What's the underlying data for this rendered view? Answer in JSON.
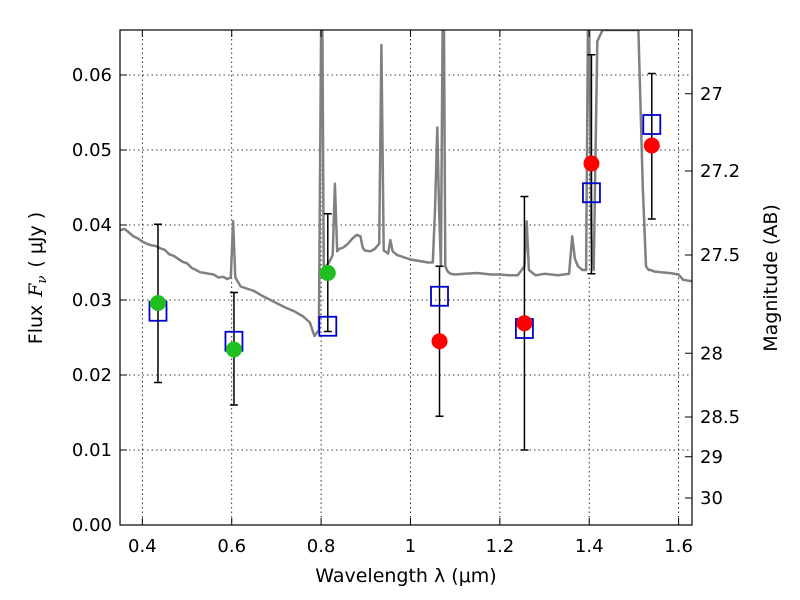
{
  "chart_data": {
    "type": "scatter",
    "xlabel": "Wavelength  λ (μm)",
    "ylabel": "Flux  F_ν  ( μJy )",
    "ylabel_parts": {
      "prefix": "Flux",
      "symbol": "F",
      "subscript": "ν",
      "unit": "( μJy )"
    },
    "ylabel_right": "Magnitude (AB)",
    "xlim": [
      0.35,
      1.63
    ],
    "ylim": [
      0.0,
      0.066
    ],
    "grid": true,
    "x_ticks": [
      0.4,
      0.6,
      0.8,
      1.0,
      1.2,
      1.4,
      1.6
    ],
    "x_tick_labels": [
      "0.4",
      "0.6",
      "0.8",
      "1",
      "1.2",
      "1.4",
      "1.6"
    ],
    "y_ticks": [
      0.0,
      0.01,
      0.02,
      0.03,
      0.04,
      0.05,
      0.06
    ],
    "y_tick_labels": [
      "0.00",
      "0.01",
      "0.02",
      "0.03",
      "0.04",
      "0.05",
      "0.06"
    ],
    "mag_ticks": [
      {
        "label": "27",
        "flux": 0.0575
      },
      {
        "label": "27.2",
        "flux": 0.0472
      },
      {
        "label": "27.5",
        "flux": 0.036
      },
      {
        "label": "28",
        "flux": 0.0229
      },
      {
        "label": "28.5",
        "flux": 0.0144
      },
      {
        "label": "29",
        "flux": 0.0091
      },
      {
        "label": "30",
        "flux": 0.0036
      }
    ],
    "colors": {
      "model": "#808080",
      "observed_green": "#1fbf1f",
      "observed_red": "#ff0000",
      "model_photometry": "#0000cc",
      "errorbar": "#000000"
    },
    "series": [
      {
        "name": "model spectrum",
        "kind": "line",
        "x": [
          0.35,
          0.36,
          0.37,
          0.38,
          0.39,
          0.4,
          0.41,
          0.42,
          0.43,
          0.44,
          0.45,
          0.46,
          0.47,
          0.48,
          0.49,
          0.5,
          0.51,
          0.52,
          0.53,
          0.54,
          0.55,
          0.56,
          0.57,
          0.58,
          0.59,
          0.598,
          0.603,
          0.608,
          0.62,
          0.63,
          0.65,
          0.67,
          0.7,
          0.72,
          0.74,
          0.76,
          0.775,
          0.785,
          0.795,
          0.8,
          0.803,
          0.806,
          0.81,
          0.818,
          0.826,
          0.831,
          0.836,
          0.84,
          0.85,
          0.86,
          0.87,
          0.88,
          0.888,
          0.893,
          0.898,
          0.91,
          0.92,
          0.93,
          0.935,
          0.94,
          0.95,
          0.955,
          0.96,
          0.97,
          0.98,
          1.0,
          1.02,
          1.04,
          1.05,
          1.055,
          1.06,
          1.064,
          1.068,
          1.072,
          1.075,
          1.078,
          1.083,
          1.09,
          1.1,
          1.12,
          1.15,
          1.18,
          1.2,
          1.22,
          1.24,
          1.255,
          1.26,
          1.265,
          1.28,
          1.3,
          1.33,
          1.355,
          1.362,
          1.368,
          1.375,
          1.385,
          1.393,
          1.397,
          1.4,
          1.405,
          1.41,
          1.418,
          1.43,
          1.45,
          1.47,
          1.49,
          1.5,
          1.51,
          1.52,
          1.527,
          1.533,
          1.538,
          1.545,
          1.56,
          1.58,
          1.6,
          1.61,
          1.63
        ],
        "y": [
          0.0393,
          0.0395,
          0.039,
          0.0385,
          0.0382,
          0.0378,
          0.0375,
          0.0373,
          0.0372,
          0.0369,
          0.0367,
          0.0361,
          0.0359,
          0.0355,
          0.0351,
          0.0349,
          0.0343,
          0.034,
          0.0337,
          0.0336,
          0.0335,
          0.0334,
          0.033,
          0.0331,
          0.0328,
          0.033,
          0.0405,
          0.033,
          0.0318,
          0.0316,
          0.0312,
          0.0305,
          0.0296,
          0.029,
          0.0285,
          0.0278,
          0.027,
          0.0252,
          0.026,
          0.066,
          0.066,
          0.033,
          0.0345,
          0.035,
          0.036,
          0.0455,
          0.0365,
          0.0368,
          0.037,
          0.0375,
          0.0382,
          0.0387,
          0.0385,
          0.037,
          0.0366,
          0.0365,
          0.0368,
          0.0375,
          0.064,
          0.0366,
          0.0362,
          0.038,
          0.0365,
          0.036,
          0.0358,
          0.0354,
          0.0352,
          0.035,
          0.035,
          0.042,
          0.053,
          0.042,
          0.0345,
          0.066,
          0.066,
          0.0345,
          0.0338,
          0.0335,
          0.0334,
          0.0335,
          0.0336,
          0.0334,
          0.0334,
          0.0333,
          0.0333,
          0.0345,
          0.0405,
          0.034,
          0.0333,
          0.0335,
          0.0333,
          0.0335,
          0.0385,
          0.0355,
          0.0345,
          0.034,
          0.034,
          0.066,
          0.066,
          0.038,
          0.034,
          0.0645,
          0.066,
          0.066,
          0.066,
          0.066,
          0.066,
          0.066,
          0.045,
          0.0345,
          0.034,
          0.034,
          0.0338,
          0.0337,
          0.0336,
          0.0334,
          0.0327,
          0.0325
        ]
      },
      {
        "name": "observed (detections)",
        "kind": "marker",
        "marker": "circle",
        "x": [
          0.435,
          0.605,
          0.815
        ],
        "y": [
          0.0296,
          0.0234,
          0.0336
        ],
        "yerr_low": [
          0.019,
          0.016,
          0.0258
        ],
        "yerr_high": [
          0.0401,
          0.031,
          0.0415
        ],
        "color_key": "observed_green"
      },
      {
        "name": "observed (other bands)",
        "kind": "marker",
        "marker": "circle",
        "x": [
          1.065,
          1.255,
          1.405,
          1.54
        ],
        "y": [
          0.0245,
          0.0269,
          0.0482,
          0.0506
        ],
        "yerr_low": [
          0.0145,
          0.01,
          0.0335,
          0.0408
        ],
        "yerr_high": [
          0.0345,
          0.0438,
          0.0627,
          0.0602
        ],
        "color_key": "observed_red"
      },
      {
        "name": "model photometry",
        "kind": "marker",
        "marker": "square",
        "x": [
          0.435,
          0.605,
          0.815,
          1.065,
          1.255,
          1.405,
          1.54
        ],
        "y": [
          0.0285,
          0.0245,
          0.0265,
          0.0305,
          0.0262,
          0.0443,
          0.0534
        ],
        "color_key": "model_photometry"
      }
    ]
  }
}
